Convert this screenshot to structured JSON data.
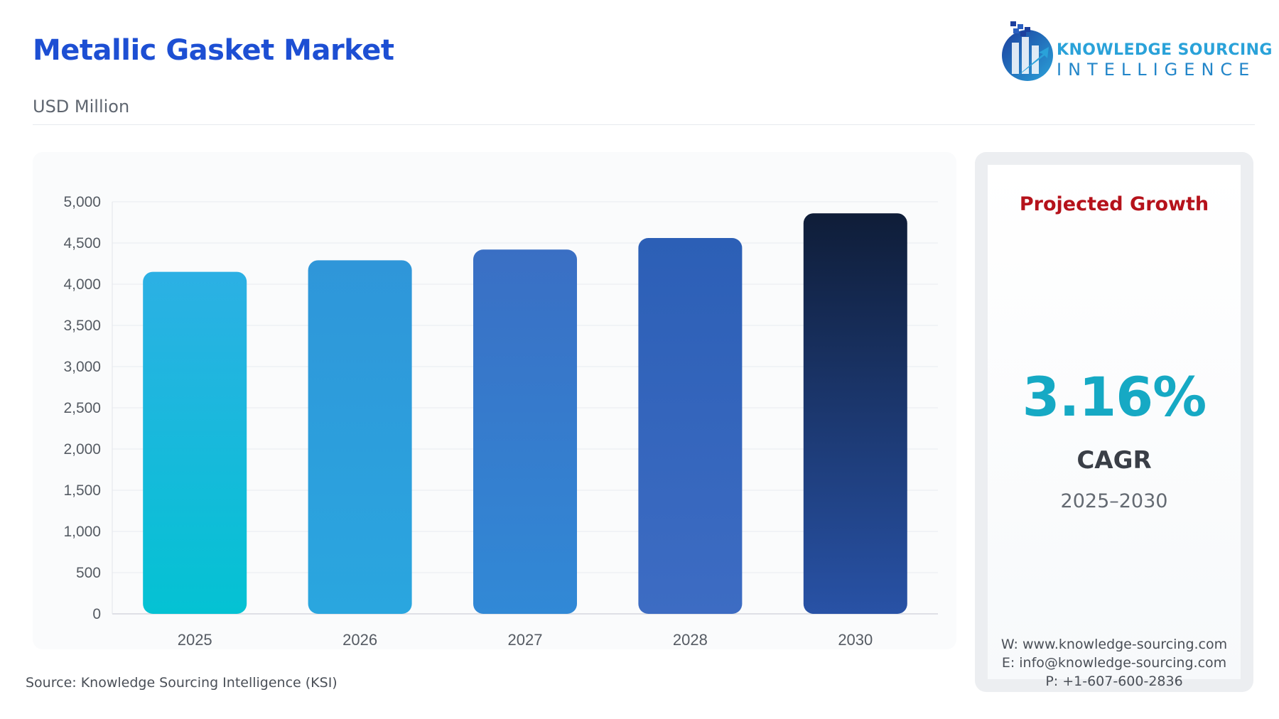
{
  "header": {
    "title": "Metallic Gasket Market",
    "subtitle": "USD Million"
  },
  "brand": {
    "line1": "KNOWLEDGE SOURCING",
    "line2": "INTELLIGENCE",
    "logo_icon": "ksi-building-arrow-logo"
  },
  "chart_data": {
    "type": "bar",
    "categories": [
      "2025",
      "2026",
      "2027",
      "2028",
      "2030"
    ],
    "values": [
      4150,
      4290,
      4420,
      4560,
      4860
    ],
    "ylim": [
      0,
      5000
    ],
    "yticks": [
      0,
      500,
      1000,
      1500,
      2000,
      2500,
      3000,
      3500,
      4000,
      4500,
      5000
    ],
    "ytick_labels": [
      "0",
      "500",
      "1,000",
      "1,500",
      "2,000",
      "2,500",
      "3,000",
      "3,500",
      "4,000",
      "4,500",
      "5,000"
    ],
    "grid": true,
    "bar_colors": [
      [
        "#2cb0e4",
        "#04c2d3"
      ],
      [
        "#2f96d9",
        "#2aa6df"
      ],
      [
        "#3a6fc4",
        "#3189d6"
      ],
      [
        "#2c5fb6",
        "#3d6cc3"
      ],
      [
        "#0f1d38",
        "#2852a6"
      ]
    ]
  },
  "source": "Source: Knowledge Sourcing Intelligence (KSI)",
  "growth_panel": {
    "heading": "Projected Growth",
    "cagr_value": "3.16%",
    "cagr_label": "CAGR",
    "period": "2025–2030",
    "website": "W: www.knowledge-sourcing.com",
    "email": "E: info@knowledge-sourcing.com",
    "phone": "P: +1-607-600-2836"
  },
  "colors": {
    "title": "#1d4fd3",
    "growth_heading": "#b5121b",
    "cagr_value": "#16a9c4"
  }
}
